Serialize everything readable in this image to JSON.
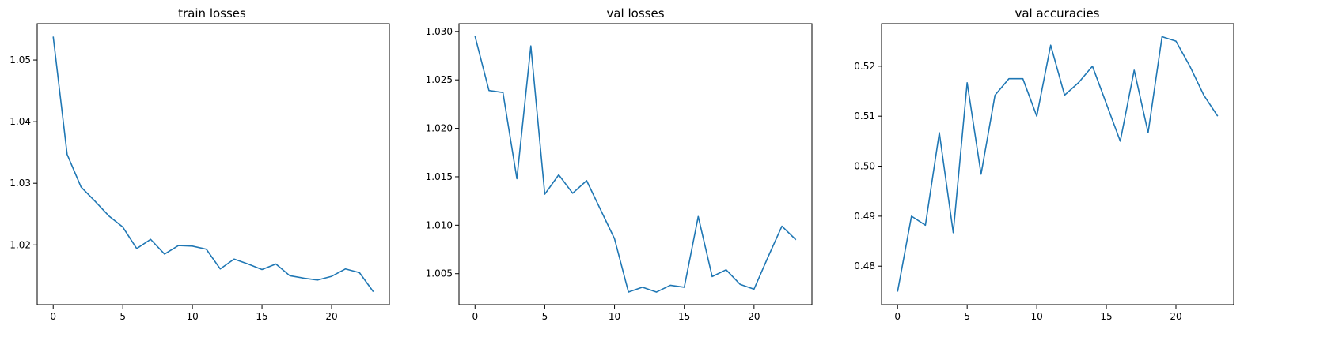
{
  "chart_data": [
    {
      "type": "line",
      "title": "train losses",
      "xlabel": "",
      "ylabel": "",
      "x": [
        0,
        1,
        2,
        3,
        4,
        5,
        6,
        7,
        8,
        9,
        10,
        11,
        12,
        13,
        14,
        15,
        16,
        17,
        18,
        19,
        20,
        21,
        22,
        23
      ],
      "series": [
        {
          "color": "#1f77b4",
          "values": [
            1.0538,
            1.0347,
            1.0294,
            1.0271,
            1.0247,
            1.0229,
            1.0194,
            1.0209,
            1.0185,
            1.0199,
            1.0198,
            1.0193,
            1.0161,
            1.0177,
            1.0169,
            1.016,
            1.0169,
            1.015,
            1.0146,
            1.0143,
            1.0149,
            1.0161,
            1.0155,
            1.0124
          ]
        }
      ],
      "xlim": [
        -1.15,
        24.15
      ],
      "ylim": [
        1.0103,
        1.0559
      ],
      "xticks": [
        0,
        5,
        10,
        15,
        20
      ],
      "xtick_labels": [
        "0",
        "5",
        "10",
        "15",
        "20"
      ],
      "yticks": [
        1.02,
        1.03,
        1.04,
        1.05
      ],
      "ytick_labels": [
        "1.02",
        "1.03",
        "1.04",
        "1.05"
      ],
      "grid": false,
      "legend": "none"
    },
    {
      "type": "line",
      "title": "val losses",
      "xlabel": "",
      "ylabel": "",
      "x": [
        0,
        1,
        2,
        3,
        4,
        5,
        6,
        7,
        8,
        9,
        10,
        11,
        12,
        13,
        14,
        15,
        16,
        17,
        18,
        19,
        20,
        21,
        22,
        23
      ],
      "series": [
        {
          "color": "#1f77b4",
          "values": [
            1.0295,
            1.0239,
            1.0237,
            1.0148,
            1.0285,
            1.0132,
            1.0152,
            1.0133,
            1.0146,
            1.0116,
            1.0086,
            1.0031,
            1.0036,
            1.0031,
            1.0038,
            1.0036,
            1.0109,
            1.0047,
            1.0054,
            1.0039,
            1.0034,
            1.0067,
            1.0099,
            1.0085
          ]
        }
      ],
      "xlim": [
        -1.15,
        24.15
      ],
      "ylim": [
        1.0018,
        1.0308
      ],
      "xticks": [
        0,
        5,
        10,
        15,
        20
      ],
      "xtick_labels": [
        "0",
        "5",
        "10",
        "15",
        "20"
      ],
      "yticks": [
        1.005,
        1.01,
        1.015,
        1.02,
        1.025,
        1.03
      ],
      "ytick_labels": [
        "1.005",
        "1.010",
        "1.015",
        "1.020",
        "1.025",
        "1.030"
      ],
      "grid": false,
      "legend": "none"
    },
    {
      "type": "line",
      "title": "val accuracies",
      "xlabel": "",
      "ylabel": "",
      "x": [
        0,
        1,
        2,
        3,
        4,
        5,
        6,
        7,
        8,
        9,
        10,
        11,
        12,
        13,
        14,
        15,
        16,
        17,
        18,
        19,
        20,
        21,
        22,
        23
      ],
      "series": [
        {
          "color": "#1f77b4",
          "values": [
            0.4749,
            0.49,
            0.4882,
            0.5067,
            0.4867,
            0.5167,
            0.4984,
            0.5142,
            0.5175,
            0.5175,
            0.51,
            0.5242,
            0.5142,
            0.5167,
            0.52,
            0.5125,
            0.505,
            0.5192,
            0.5067,
            0.5259,
            0.525,
            0.52,
            0.5142,
            0.51
          ]
        }
      ],
      "xlim": [
        -1.15,
        24.15
      ],
      "ylim": [
        0.4723,
        0.5285
      ],
      "xticks": [
        0,
        5,
        10,
        15,
        20
      ],
      "xtick_labels": [
        "0",
        "5",
        "10",
        "15",
        "20"
      ],
      "yticks": [
        0.48,
        0.49,
        0.5,
        0.51,
        0.52
      ],
      "ytick_labels": [
        "0.48",
        "0.49",
        "0.50",
        "0.51",
        "0.52"
      ],
      "grid": false,
      "legend": "none"
    }
  ]
}
